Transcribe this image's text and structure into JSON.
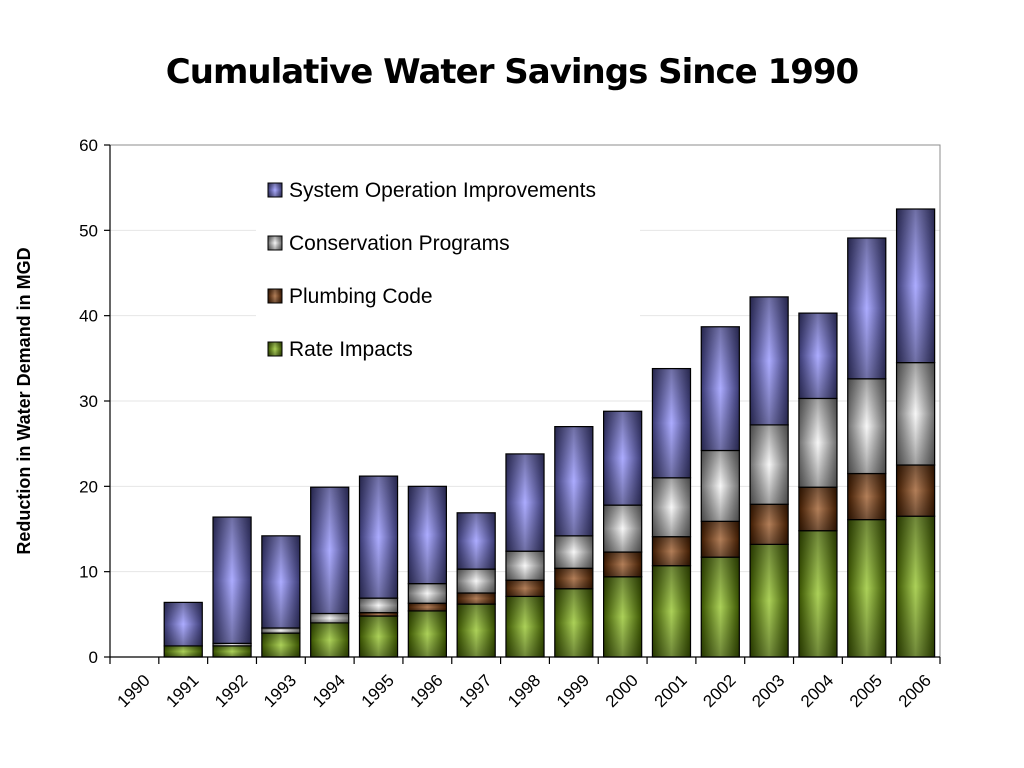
{
  "chart_data": {
    "type": "bar",
    "stacked": true,
    "title": "Cumulative Water Savings Since 1990",
    "xlabel": "",
    "ylabel": "Reduction in Water Demand in MGD",
    "ylim": [
      0,
      60
    ],
    "yticks": [
      "0",
      "10",
      "20",
      "30",
      "40",
      "50",
      "60"
    ],
    "grid": true,
    "legend_position": "top-center",
    "categories": [
      "1990",
      "1991",
      "1992",
      "1993",
      "1994",
      "1995",
      "1996",
      "1997",
      "1998",
      "1999",
      "2000",
      "2001",
      "2002",
      "2003",
      "2004",
      "2005",
      "2006"
    ],
    "series": [
      {
        "name": "Rate Impacts",
        "color": "#7fb800",
        "values": [
          0,
          1.3,
          1.3,
          2.8,
          4.0,
          4.8,
          5.4,
          6.2,
          7.1,
          8.0,
          9.4,
          10.7,
          11.7,
          13.2,
          14.8,
          16.1,
          16.5
        ]
      },
      {
        "name": "Plumbing Code",
        "color": "#8a3a00",
        "values": [
          0,
          0,
          0,
          0,
          0,
          0.4,
          0.9,
          1.3,
          1.9,
          2.4,
          2.9,
          3.4,
          4.2,
          4.7,
          5.1,
          5.4,
          6.0
        ]
      },
      {
        "name": "Conservation Programs",
        "color": "#f2f2f2",
        "values": [
          0,
          0,
          0.3,
          0.6,
          1.1,
          1.7,
          2.3,
          2.8,
          3.4,
          3.8,
          5.5,
          6.9,
          8.3,
          9.3,
          10.4,
          11.1,
          12.0
        ]
      },
      {
        "name": "System Operation Improvements",
        "color": "#7f7fff",
        "values": [
          0,
          5.1,
          14.8,
          10.8,
          14.8,
          14.3,
          11.4,
          6.6,
          11.4,
          12.8,
          11.0,
          12.8,
          14.5,
          15.0,
          10.0,
          16.5,
          18.0
        ]
      }
    ],
    "legend_order": [
      "System Operation Improvements",
      "Conservation Programs",
      "Plumbing Code",
      "Rate Impacts"
    ]
  }
}
